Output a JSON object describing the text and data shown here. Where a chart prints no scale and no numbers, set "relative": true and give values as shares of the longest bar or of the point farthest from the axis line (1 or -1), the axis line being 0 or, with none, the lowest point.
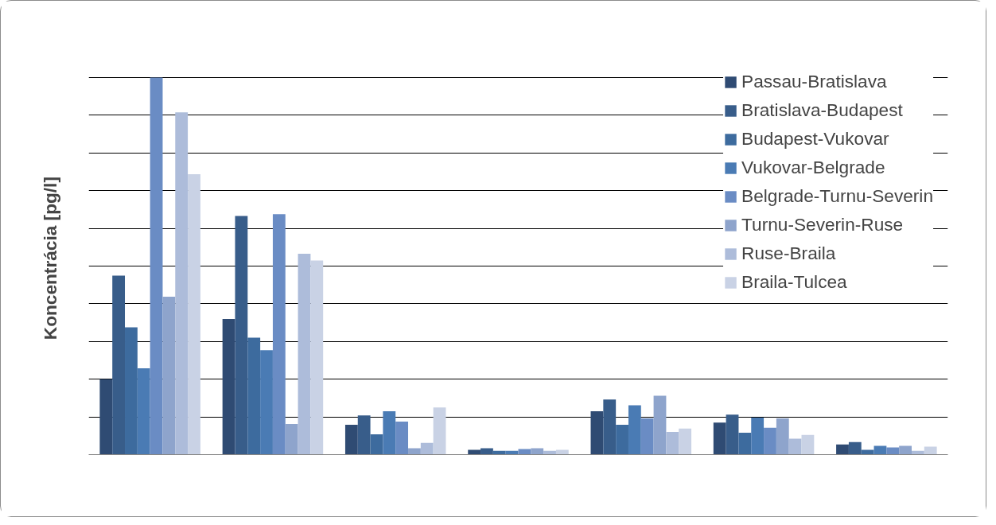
{
  "chart_data": {
    "type": "bar",
    "relative": true,
    "ylabel": "Koncentrácia  [pg/l]",
    "categories": [
      null,
      null,
      null,
      null,
      null,
      null,
      null
    ],
    "grid": "y",
    "legend": "top right",
    "series": [
      {
        "name": "Passau-Bratislava",
        "color": "#2f4b73",
        "values": [
          0.2,
          0.36,
          0.079,
          0.0125,
          0.115,
          0.085,
          0.027
        ]
      },
      {
        "name": "Bratislava-Budapest",
        "color": "#385d8a",
        "values": [
          0.475,
          0.633,
          0.104,
          0.017,
          0.146,
          0.106,
          0.033
        ]
      },
      {
        "name": "Budapest-Vukovar",
        "color": "#3d6b9e",
        "values": [
          0.3375,
          0.31,
          0.054,
          0.01,
          0.079,
          0.058,
          0.0125
        ]
      },
      {
        "name": "Vukovar-Belgrade",
        "color": "#4a7bb4",
        "values": [
          0.229,
          0.277,
          0.115,
          0.01,
          0.131,
          0.098,
          0.023
        ]
      },
      {
        "name": "Belgrade-Turnu-Severin",
        "color": "#6a8cc4",
        "values": [
          1,
          0.6375,
          0.0875,
          0.015,
          0.096,
          0.071,
          0.019
        ]
      },
      {
        "name": "Turnu-Severin-Ruse",
        "color": "#8ea4cc",
        "values": [
          0.419,
          0.081,
          0.017,
          0.017,
          0.156,
          0.096,
          0.023
        ]
      },
      {
        "name": "Ruse-Braila",
        "color": "#adbcda",
        "values": [
          0.908,
          0.533,
          0.031,
          0.01,
          0.06,
          0.042,
          0.01
        ]
      },
      {
        "name": "Braila-Tulcea",
        "color": "#c9d2e5",
        "values": [
          0.744,
          0.515,
          0.125,
          0.0125,
          0.069,
          0.052,
          0.021
        ]
      }
    ]
  }
}
